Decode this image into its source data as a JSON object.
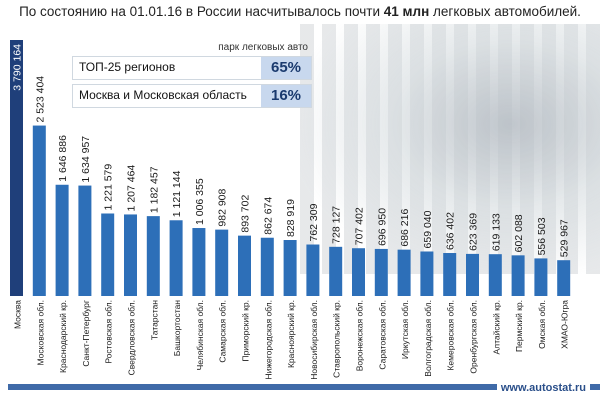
{
  "headline": {
    "prefix": "По состоянию на 01.01.16 в России насчитывалось почти",
    "bold": "41 млн",
    "suffix": "легковых автомобилей."
  },
  "stats": {
    "caption": "парк легковых авто",
    "rows": [
      {
        "label": "ТОП-25 регионов",
        "value": "65%"
      },
      {
        "label": "Москва и Московская область",
        "value": "16%"
      }
    ]
  },
  "site": "www.autostat.ru",
  "colors": {
    "bar_first": "#1f3f7a",
    "bar": "#2d6fb8",
    "accent": "#3f6aa8"
  },
  "chart_data": {
    "type": "bar",
    "categories": [
      "Москва",
      "Московская обл.",
      "Краснодарский кр.",
      "Санкт-Петербург",
      "Ростовская обл.",
      "Свердловская обл.",
      "Татарстан",
      "Башкортостан",
      "Челябинская обл.",
      "Самарская обл.",
      "Приморский кр.",
      "Нижегородская обл.",
      "Красноярский кр.",
      "Новосибирская обл.",
      "Ставропольский кр.",
      "Воронежская обл.",
      "Саратовская обл.",
      "Иркутская обл.",
      "Волгоградская обл.",
      "Кемеровская обл.",
      "Оренбургская обл.",
      "Алтайский кр.",
      "Пермский кр.",
      "Омская обл.",
      "ХМАО-Югра"
    ],
    "values": [
      3790164,
      2523404,
      1646886,
      1634957,
      1221579,
      1207464,
      1182457,
      1121144,
      1006355,
      982908,
      893702,
      862674,
      828919,
      762309,
      728127,
      707402,
      696950,
      686216,
      659040,
      636402,
      623369,
      619133,
      602088,
      556503,
      529967
    ],
    "labels": [
      "3 790 164",
      "2 523 404",
      "1 646 886",
      "1 634 957",
      "1 221 579",
      "1 207 464",
      "1 182 457",
      "1 121 144",
      "1 006 355",
      "982 908",
      "893 702",
      "862 674",
      "828 919",
      "762 309",
      "728 127",
      "707 402",
      "696 950",
      "686 216",
      "659 040",
      "636 402",
      "623 369",
      "619 133",
      "602 088",
      "556 503",
      "529 967"
    ]
  }
}
